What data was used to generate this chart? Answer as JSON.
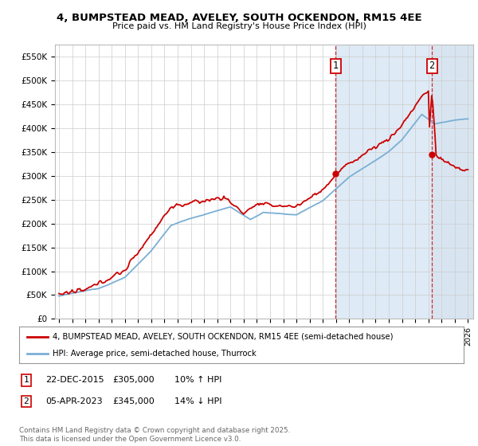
{
  "title": "4, BUMPSTEAD MEAD, AVELEY, SOUTH OCKENDON, RM15 4EE",
  "subtitle": "Price paid vs. HM Land Registry's House Price Index (HPI)",
  "ylim": [
    0,
    575000
  ],
  "yticks": [
    0,
    50000,
    100000,
    150000,
    200000,
    250000,
    300000,
    350000,
    400000,
    450000,
    500000,
    550000
  ],
  "ytick_labels": [
    "£0",
    "£50K",
    "£100K",
    "£150K",
    "£200K",
    "£250K",
    "£300K",
    "£350K",
    "£400K",
    "£450K",
    "£500K",
    "£550K"
  ],
  "background_color": "#ffffff",
  "plot_bg_color": "#ffffff",
  "grid_color": "#cccccc",
  "red_line_color": "#cc0000",
  "blue_line_color": "#7aafd4",
  "shade_color": "#deeaf5",
  "marker1_x": 2015.96,
  "marker1_y": 305000,
  "marker2_x": 2023.27,
  "marker2_y": 345000,
  "marker1_date": "22-DEC-2015",
  "marker1_price": "£305,000",
  "marker1_hpi": "10% ↑ HPI",
  "marker2_date": "05-APR-2023",
  "marker2_price": "£345,000",
  "marker2_hpi": "14% ↓ HPI",
  "legend_label1": "4, BUMPSTEAD MEAD, AVELEY, SOUTH OCKENDON, RM15 4EE (semi-detached house)",
  "legend_label2": "HPI: Average price, semi-detached house, Thurrock",
  "footer": "Contains HM Land Registry data © Crown copyright and database right 2025.\nThis data is licensed under the Open Government Licence v3.0.",
  "xmin": 1995,
  "xmax": 2026
}
